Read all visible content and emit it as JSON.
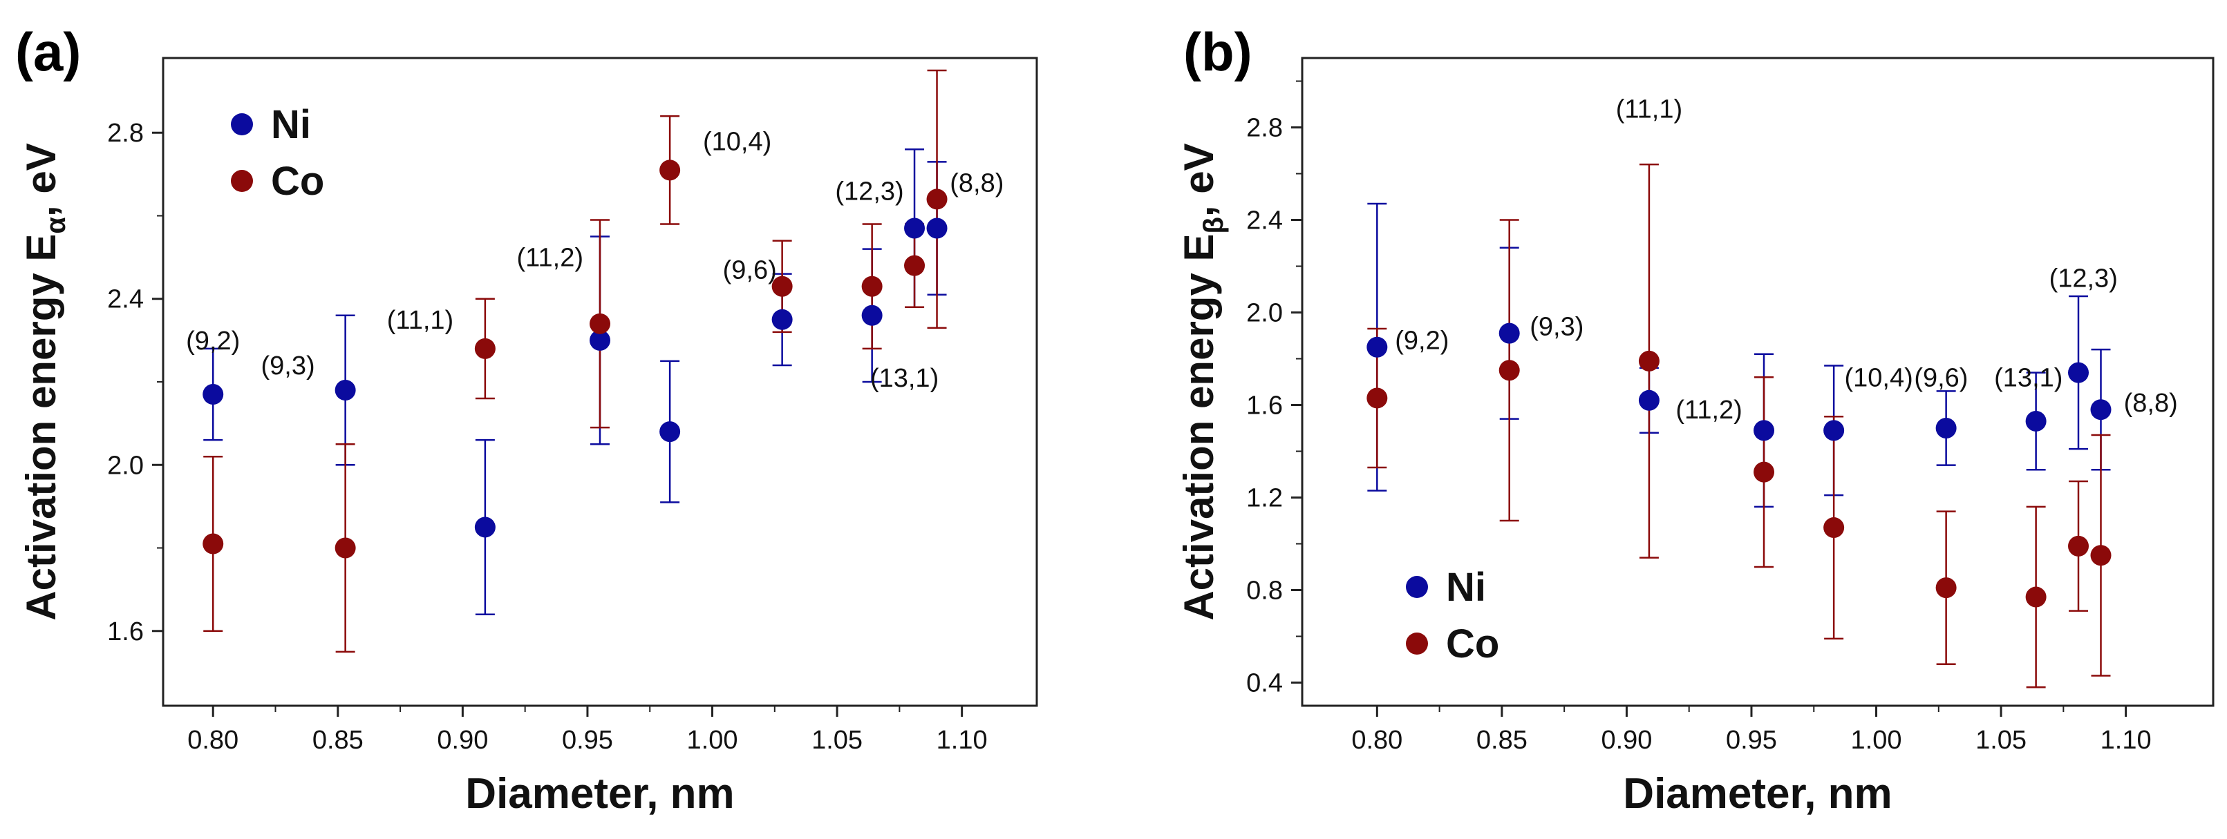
{
  "colors": {
    "ni": "#0b0b9e",
    "co": "#8b0a0a",
    "axis": "#222222"
  },
  "chart_data": [
    {
      "type": "scatter",
      "panel_label": "(a)",
      "xlabel": "Diameter, nm",
      "ylabel_main": "Activation energy E",
      "ylabel_sub": "α",
      "ylabel_tail": ", eV",
      "xlim": [
        0.78,
        1.13
      ],
      "ylim": [
        1.42,
        2.98
      ],
      "xticks": [
        0.8,
        0.85,
        0.9,
        0.95,
        1.0,
        1.05,
        1.1
      ],
      "xtick_labels": [
        "0.80",
        "0.85",
        "0.90",
        "0.95",
        "1.00",
        "1.05",
        "1.10"
      ],
      "yticks": [
        1.6,
        2.0,
        2.4,
        2.8
      ],
      "ytick_labels": [
        "1.6",
        "2.0",
        "2.4",
        "2.8"
      ],
      "legend": {
        "position": "top-left",
        "entries": [
          "Ni",
          "Co"
        ]
      },
      "series": [
        {
          "name": "Ni",
          "x": [
            0.8,
            0.853,
            0.909,
            0.955,
            0.983,
            1.028,
            1.064,
            1.081,
            1.09
          ],
          "y": [
            2.17,
            2.18,
            1.85,
            2.3,
            2.08,
            2.35,
            2.36,
            2.57,
            2.57
          ],
          "err": [
            0.11,
            0.18,
            0.21,
            0.25,
            0.17,
            0.11,
            0.16,
            0.19,
            0.16
          ]
        },
        {
          "name": "Co",
          "x": [
            0.8,
            0.853,
            0.909,
            0.955,
            0.983,
            1.028,
            1.064,
            1.081,
            1.09
          ],
          "y": [
            1.81,
            1.8,
            2.28,
            2.34,
            2.71,
            2.43,
            2.43,
            2.48,
            2.64
          ],
          "err": [
            0.21,
            0.25,
            0.12,
            0.25,
            0.13,
            0.11,
            0.15,
            0.1,
            0.31
          ]
        }
      ],
      "annotations": [
        {
          "text": "(9,2)",
          "x": 0.8,
          "y": 2.3
        },
        {
          "text": "(9,3)",
          "x": 0.83,
          "y": 2.24
        },
        {
          "text": "(11,1)",
          "x": 0.883,
          "y": 2.35
        },
        {
          "text": "(11,2)",
          "x": 0.935,
          "y": 2.5
        },
        {
          "text": "(10,4)",
          "x": 1.01,
          "y": 2.78
        },
        {
          "text": "(9,6)",
          "x": 1.015,
          "y": 2.47
        },
        {
          "text": "(12,3)",
          "x": 1.063,
          "y": 2.66
        },
        {
          "text": "(8,8)",
          "x": 1.106,
          "y": 2.68
        },
        {
          "text": "(13,1)",
          "x": 1.077,
          "y": 2.21
        }
      ]
    },
    {
      "type": "scatter",
      "panel_label": "(b)",
      "xlabel": "Diameter, nm",
      "ylabel_main": "Activation energy E",
      "ylabel_sub": "β",
      "ylabel_tail": ", eV",
      "xlim": [
        0.77,
        1.135
      ],
      "ylim": [
        0.3,
        3.1
      ],
      "xticks": [
        0.8,
        0.85,
        0.9,
        0.95,
        1.0,
        1.05,
        1.1
      ],
      "xtick_labels": [
        "0.80",
        "0.85",
        "0.90",
        "0.95",
        "1.00",
        "1.05",
        "1.10"
      ],
      "yticks": [
        0.4,
        0.8,
        1.2,
        1.6,
        2.0,
        2.4,
        2.8
      ],
      "ytick_labels": [
        "0.4",
        "0.8",
        "1.2",
        "1.6",
        "2.0",
        "2.4",
        "2.8"
      ],
      "legend": {
        "position": "bottom-left",
        "entries": [
          "Ni",
          "Co"
        ]
      },
      "series": [
        {
          "name": "Ni",
          "x": [
            0.8,
            0.853,
            0.909,
            0.955,
            0.983,
            1.028,
            1.064,
            1.081,
            1.09
          ],
          "y": [
            1.85,
            1.91,
            1.62,
            1.49,
            1.49,
            1.5,
            1.53,
            1.74,
            1.58
          ],
          "err": [
            0.62,
            0.37,
            0.14,
            0.33,
            0.28,
            0.16,
            0.21,
            0.33,
            0.26
          ]
        },
        {
          "name": "Co",
          "x": [
            0.8,
            0.853,
            0.909,
            0.955,
            0.983,
            1.028,
            1.064,
            1.081,
            1.09
          ],
          "y": [
            1.63,
            1.75,
            1.79,
            1.31,
            1.07,
            0.81,
            0.77,
            0.99,
            0.95
          ],
          "err": [
            0.3,
            0.65,
            0.85,
            0.41,
            0.48,
            0.33,
            0.39,
            0.28,
            0.52
          ]
        }
      ],
      "annotations": [
        {
          "text": "(9,2)",
          "x": 0.818,
          "y": 1.88
        },
        {
          "text": "(9,3)",
          "x": 0.872,
          "y": 1.94
        },
        {
          "text": "(11,1)",
          "x": 0.909,
          "y": 2.88
        },
        {
          "text": "(11,2)",
          "x": 0.933,
          "y": 1.58
        },
        {
          "text": "(10,4)",
          "x": 1.001,
          "y": 1.72
        },
        {
          "text": "(9,6)",
          "x": 1.026,
          "y": 1.72
        },
        {
          "text": "(13,1)",
          "x": 1.061,
          "y": 1.72
        },
        {
          "text": "(12,3)",
          "x": 1.083,
          "y": 2.15
        },
        {
          "text": "(8,8)",
          "x": 1.11,
          "y": 1.61
        }
      ]
    }
  ]
}
